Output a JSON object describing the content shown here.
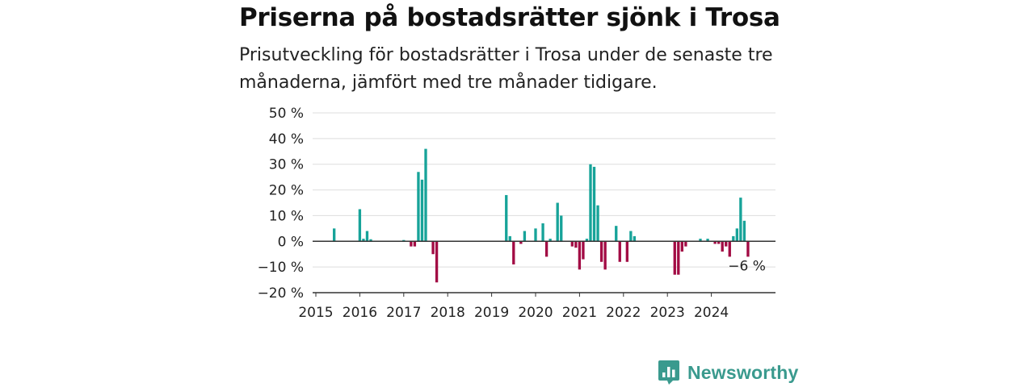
{
  "header": {
    "title": "Priserna på bostadsrätter sjönk i Trosa",
    "subtitle": "Prisutveckling för bostadsrätter i Trosa under de senaste tre månaderna, jämfört med tre månader tidigare."
  },
  "brand": {
    "name": "Newsworthy",
    "color": "#3a9a8e",
    "icon": "newsworthy-logo-icon"
  },
  "colors": {
    "positive": "#17a399",
    "negative": "#a20b44",
    "grid": "#dddddd",
    "axis": "#333333"
  },
  "chart_data": {
    "type": "bar",
    "title": "Priserna på bostadsrätter sjönk i Trosa",
    "y_unit": "%",
    "ylim": [
      -20,
      50
    ],
    "y_ticks": [
      -20,
      -10,
      0,
      10,
      20,
      30,
      40,
      50
    ],
    "y_tick_labels": [
      "−20 %",
      "−10 %",
      "0 %",
      "10 %",
      "20 %",
      "30 %",
      "40 %",
      "50 %"
    ],
    "x_ticks": [
      "2015",
      "2016",
      "2017",
      "2018",
      "2019",
      "2020",
      "2021",
      "2022",
      "2023",
      "2024"
    ],
    "grid": true,
    "last_value_label": "−6 %",
    "series": [
      {
        "values": [
          {
            "x": "2015-06",
            "y": 5
          },
          {
            "x": "2016-01",
            "y": 12.5
          },
          {
            "x": "2016-02",
            "y": 1
          },
          {
            "x": "2016-03",
            "y": 4
          },
          {
            "x": "2016-04",
            "y": 0.8
          },
          {
            "x": "2017-01",
            "y": 0.5
          },
          {
            "x": "2017-03",
            "y": -2
          },
          {
            "x": "2017-04",
            "y": -2
          },
          {
            "x": "2017-05",
            "y": 27
          },
          {
            "x": "2017-06",
            "y": 24
          },
          {
            "x": "2017-07",
            "y": 36
          },
          {
            "x": "2017-09",
            "y": -5
          },
          {
            "x": "2017-10",
            "y": -16
          },
          {
            "x": "2019-05",
            "y": 18
          },
          {
            "x": "2019-06",
            "y": 2
          },
          {
            "x": "2019-07",
            "y": -9
          },
          {
            "x": "2019-09",
            "y": -1
          },
          {
            "x": "2019-10",
            "y": 4
          },
          {
            "x": "2020-01",
            "y": 5
          },
          {
            "x": "2020-03",
            "y": 7
          },
          {
            "x": "2020-04",
            "y": -6
          },
          {
            "x": "2020-05",
            "y": 1
          },
          {
            "x": "2020-07",
            "y": 15
          },
          {
            "x": "2020-08",
            "y": 10
          },
          {
            "x": "2020-11",
            "y": -2
          },
          {
            "x": "2020-12",
            "y": -2.5
          },
          {
            "x": "2021-01",
            "y": -11
          },
          {
            "x": "2021-02",
            "y": -7
          },
          {
            "x": "2021-03",
            "y": 1
          },
          {
            "x": "2021-04",
            "y": 30
          },
          {
            "x": "2021-05",
            "y": 29
          },
          {
            "x": "2021-06",
            "y": 14
          },
          {
            "x": "2021-07",
            "y": -8
          },
          {
            "x": "2021-08",
            "y": -11
          },
          {
            "x": "2021-11",
            "y": 6
          },
          {
            "x": "2021-12",
            "y": -8
          },
          {
            "x": "2022-02",
            "y": -8
          },
          {
            "x": "2022-03",
            "y": 4
          },
          {
            "x": "2022-04",
            "y": 2
          },
          {
            "x": "2023-03",
            "y": -13
          },
          {
            "x": "2023-04",
            "y": -13
          },
          {
            "x": "2023-05",
            "y": -4
          },
          {
            "x": "2023-06",
            "y": -2
          },
          {
            "x": "2023-10",
            "y": 1
          },
          {
            "x": "2023-12",
            "y": 1
          },
          {
            "x": "2024-02",
            "y": -1
          },
          {
            "x": "2024-03",
            "y": -1
          },
          {
            "x": "2024-04",
            "y": -4
          },
          {
            "x": "2024-05",
            "y": -2
          },
          {
            "x": "2024-06",
            "y": -6
          },
          {
            "x": "2024-07",
            "y": 2
          },
          {
            "x": "2024-08",
            "y": 5
          },
          {
            "x": "2024-09",
            "y": 17
          },
          {
            "x": "2024-10",
            "y": 8
          },
          {
            "x": "2024-11",
            "y": -6
          }
        ]
      }
    ]
  }
}
